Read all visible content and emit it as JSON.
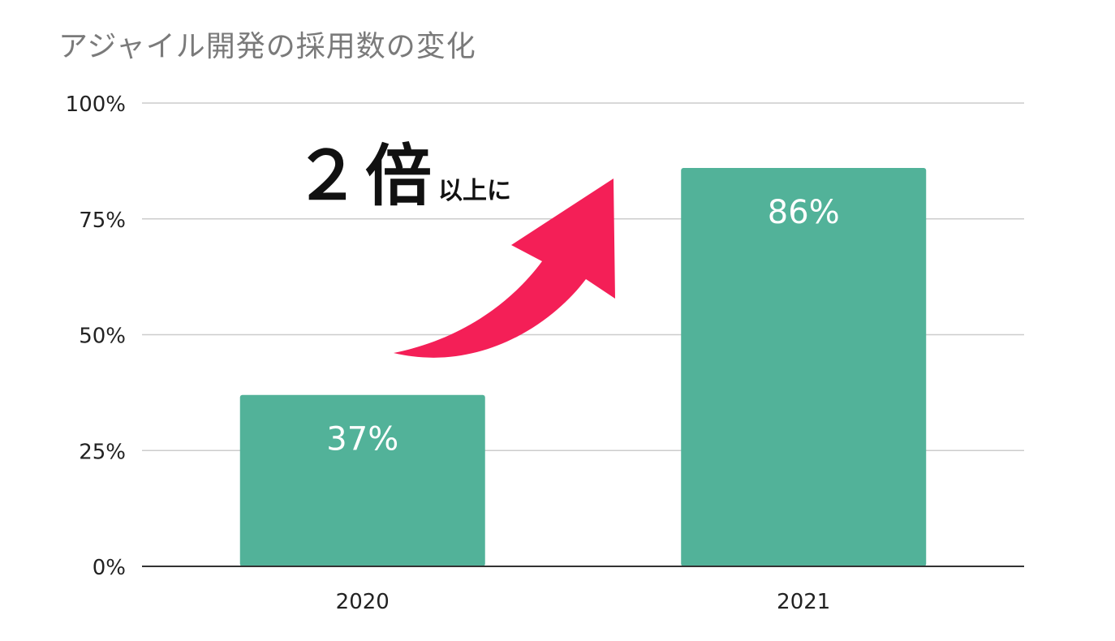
{
  "chart_data": {
    "type": "bar",
    "title": "アジャイル開発の採用数の変化",
    "categories": [
      "2020",
      "2021"
    ],
    "values": [
      37,
      86
    ],
    "data_labels": [
      "37%",
      "86%"
    ],
    "y_ticks": [
      "0%",
      "25%",
      "50%",
      "75%",
      "100%"
    ],
    "y_tick_values": [
      0,
      25,
      50,
      75,
      100
    ],
    "ylim": [
      0,
      100
    ],
    "grid": true,
    "xlabel": "",
    "ylabel": "",
    "annotation": {
      "big": "２倍",
      "small": "以上に"
    }
  },
  "colors": {
    "bar": "#52b299",
    "arrow": "#f41f57",
    "grid": "#cccccc",
    "axis": "#333333",
    "title": "#7a7a7a",
    "tick_text": "#222222",
    "bar_label": "#ffffff"
  }
}
